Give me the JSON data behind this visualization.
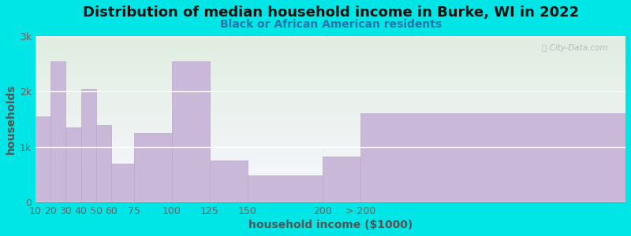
{
  "title": "Distribution of median household income in Burke, WI in 2022",
  "subtitle": "Black or African American residents",
  "xlabel": "household income ($1000)",
  "ylabel": "households",
  "background_color": "#00e5e5",
  "plot_bg_gradient_top": "#e0ede0",
  "plot_bg_gradient_bottom": "#f8f8ff",
  "bar_color": "#c9b8d8",
  "bar_edge_color": "#b8a8cc",
  "bin_edges": [
    10,
    20,
    30,
    40,
    50,
    60,
    75,
    100,
    125,
    150,
    200,
    225,
    400
  ],
  "values": [
    1550,
    2550,
    1350,
    2050,
    1400,
    700,
    1250,
    2550,
    750,
    480,
    830,
    1600
  ],
  "xtick_positions": [
    10,
    20,
    30,
    40,
    50,
    60,
    75,
    100,
    125,
    150,
    200,
    225
  ],
  "xtick_labels": [
    "10",
    "20",
    "30",
    "40",
    "50",
    "60",
    "75",
    "100",
    "125",
    "150",
    "200",
    "> 200"
  ],
  "ylim": [
    0,
    3000
  ],
  "yticks": [
    0,
    1000,
    2000,
    3000
  ],
  "ytick_labels": [
    "0",
    "1k",
    "2k",
    "3k"
  ],
  "title_fontsize": 13,
  "subtitle_fontsize": 10,
  "axis_label_fontsize": 10,
  "tick_fontsize": 9,
  "watermark": "ⓘ City-Data.com"
}
